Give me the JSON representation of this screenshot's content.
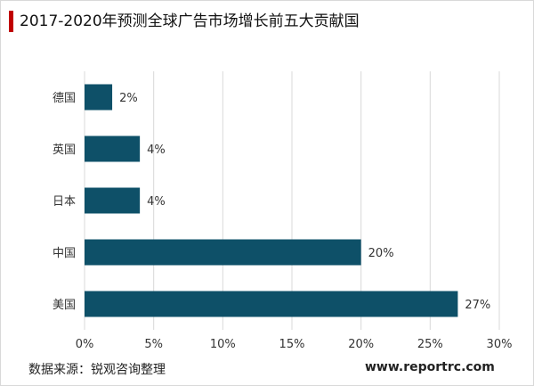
{
  "title": "2017-2020年预测全球广告市场增长前五大贡献国",
  "source": "数据来源：锐观咨询整理",
  "website": "www.reportrc.com",
  "colors": {
    "bar": "#0e5068",
    "grid": "#d9d9d9",
    "accent": "#c00000"
  },
  "chart_data": {
    "type": "bar",
    "orientation": "horizontal",
    "categories": [
      "德国",
      "英国",
      "日本",
      "中国",
      "美国"
    ],
    "values": [
      2,
      4,
      4,
      20,
      27
    ],
    "data_labels": [
      "2%",
      "4%",
      "4%",
      "20%",
      "27%"
    ],
    "xlim": [
      0,
      30
    ],
    "x_ticks": [
      0,
      5,
      10,
      15,
      20,
      25,
      30
    ],
    "x_tick_labels": [
      "0%",
      "5%",
      "10%",
      "15%",
      "20%",
      "25%",
      "30%"
    ],
    "grid": true,
    "legend": "none"
  }
}
